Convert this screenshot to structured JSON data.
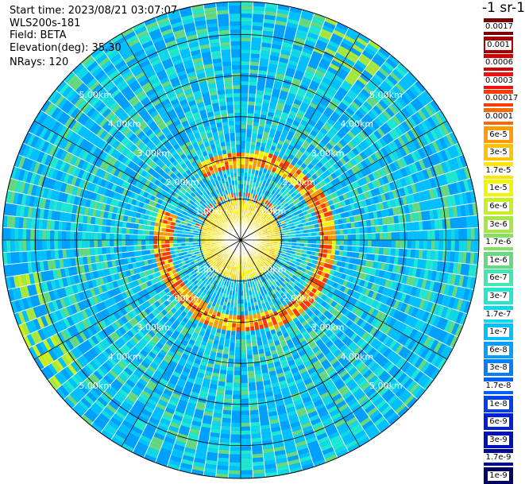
{
  "header": {
    "start_time": "Start time: 2023/08/21 03:07:07",
    "instrument": "WLS200s-181",
    "field": "Field: BETA",
    "elevation": "Elevation(deg): 35.30",
    "nrays": "NRays: 120"
  },
  "colorbar": {
    "unit": "-1 sr-1",
    "entries": [
      {
        "label": "0.0017",
        "color": "#7a0000"
      },
      {
        "label": "0.001",
        "color": "#a80000"
      },
      {
        "label": "0.0006",
        "color": "#d40000"
      },
      {
        "label": "0.0003",
        "color": "#f01010"
      },
      {
        "label": "0.00017",
        "color": "#ff3a00"
      },
      {
        "label": "0.0001",
        "color": "#ff6a00"
      },
      {
        "label": "6e-5",
        "color": "#ff9a00"
      },
      {
        "label": "3e-5",
        "color": "#ffc400"
      },
      {
        "label": "1.7e-5",
        "color": "#ffe600"
      },
      {
        "label": "1e-5",
        "color": "#f2f400"
      },
      {
        "label": "6e-6",
        "color": "#c8f020"
      },
      {
        "label": "3e-6",
        "color": "#a6e840"
      },
      {
        "label": "1.7e-6",
        "color": "#86e060"
      },
      {
        "label": "1e-6",
        "color": "#66d880"
      },
      {
        "label": "6e-7",
        "color": "#3ee8b0"
      },
      {
        "label": "3e-7",
        "color": "#20e8d0"
      },
      {
        "label": "1.7e-7",
        "color": "#10d8e8"
      },
      {
        "label": "1e-7",
        "color": "#00c0ff"
      },
      {
        "label": "6e-8",
        "color": "#00a0ff"
      },
      {
        "label": "3e-8",
        "color": "#0080ff"
      },
      {
        "label": "1.7e-8",
        "color": "#0060ff"
      },
      {
        "label": "1e-8",
        "color": "#0040f0"
      },
      {
        "label": "6e-9",
        "color": "#0020d8"
      },
      {
        "label": "3e-9",
        "color": "#0010b8"
      },
      {
        "label": "1.7e-9",
        "color": "#000a90"
      },
      {
        "label": "1e-9",
        "color": "#000060"
      }
    ]
  },
  "chart_data": {
    "type": "heatmap",
    "projection": "polar",
    "n_rays": 120,
    "range_rings_km": [
      1.0,
      2.0,
      3.0,
      4.0,
      5.0
    ],
    "ring_labels": [
      "1.00km",
      "2.00km",
      "3.00km",
      "4.00km",
      "5.00km"
    ],
    "max_range_km": 5.8,
    "background_color": "#1a74e6",
    "features": [
      {
        "kind": "near-field",
        "r_km": [
          0.0,
          1.0
        ],
        "color": "#22aaee"
      },
      {
        "kind": "aerosol-ring",
        "r_km": [
          1.85,
          2.15
        ],
        "color": "#ffd400",
        "edge_color": "#ff7a00"
      },
      {
        "kind": "inner-arc",
        "r_km": [
          0.9,
          1.2
        ],
        "az_deg": [
          280,
          80
        ],
        "color": "#ff9a00"
      }
    ]
  }
}
